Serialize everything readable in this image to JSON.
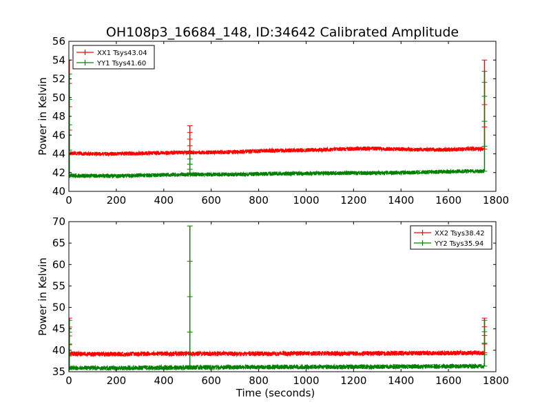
{
  "figure": {
    "title": "OH108p3_16684_148, ID:34642 Calibrated Amplitude"
  },
  "chart_data": [
    {
      "type": "line",
      "title": "OH108p3_16684_148, ID:34642 Calibrated Amplitude",
      "xlabel": "",
      "ylabel": "Power in Kelvin",
      "xlim": [
        0,
        1800
      ],
      "ylim": [
        40,
        56
      ],
      "xticks": [
        0,
        200,
        400,
        600,
        800,
        1000,
        1200,
        1400,
        1600,
        1800
      ],
      "yticks": [
        40,
        42,
        44,
        46,
        48,
        50,
        52,
        54,
        56
      ],
      "grid": false,
      "legend_position": "top-left",
      "series": [
        {
          "name": "XX1 Tsys43.04",
          "color": "#ff0000",
          "x": [
            0,
            100,
            200,
            300,
            400,
            500,
            600,
            700,
            800,
            900,
            1000,
            1100,
            1200,
            1300,
            1400,
            1500,
            1600,
            1700,
            1750
          ],
          "y": [
            44.05,
            44.0,
            44.0,
            44.05,
            44.1,
            44.15,
            44.15,
            44.2,
            44.3,
            44.35,
            44.4,
            44.45,
            44.55,
            44.55,
            44.5,
            44.45,
            44.45,
            44.55,
            44.5
          ],
          "spikes": [
            {
              "x": 2,
              "y": 54.0
            },
            {
              "x": 510,
              "y": 47.0
            },
            {
              "x": 1752,
              "y": 54.0
            }
          ]
        },
        {
          "name": "YY1 Tsys41.60",
          "color": "#008000",
          "x": [
            0,
            100,
            200,
            300,
            400,
            500,
            600,
            700,
            800,
            900,
            1000,
            1100,
            1200,
            1300,
            1400,
            1500,
            1600,
            1700,
            1750
          ],
          "y": [
            41.7,
            41.65,
            41.65,
            41.7,
            41.75,
            41.8,
            41.8,
            41.8,
            41.85,
            41.9,
            41.9,
            41.95,
            41.95,
            41.95,
            42.0,
            42.05,
            42.1,
            42.15,
            42.15
          ],
          "spikes": [
            {
              "x": 2,
              "y": 52.5
            },
            {
              "x": 510,
              "y": 44.0
            },
            {
              "x": 1752,
              "y": 52.8
            }
          ]
        }
      ]
    },
    {
      "type": "line",
      "title": "",
      "xlabel": "Time (seconds)",
      "ylabel": "Power in Kelvin",
      "xlim": [
        0,
        1800
      ],
      "ylim": [
        35,
        70
      ],
      "xticks": [
        0,
        200,
        400,
        600,
        800,
        1000,
        1200,
        1400,
        1600,
        1800
      ],
      "yticks": [
        35,
        40,
        45,
        50,
        55,
        60,
        65,
        70
      ],
      "grid": false,
      "legend_position": "top-right",
      "series": [
        {
          "name": "XX2 Tsys38.42",
          "color": "#ff0000",
          "x": [
            0,
            100,
            200,
            300,
            400,
            500,
            600,
            700,
            800,
            900,
            1000,
            1100,
            1200,
            1300,
            1400,
            1500,
            1600,
            1700,
            1750
          ],
          "y": [
            39.2,
            39.1,
            39.1,
            39.15,
            39.2,
            39.2,
            39.2,
            39.2,
            39.2,
            39.25,
            39.25,
            39.25,
            39.25,
            39.3,
            39.3,
            39.3,
            39.35,
            39.4,
            39.4
          ],
          "spikes": [
            {
              "x": 2,
              "y": 47.5
            },
            {
              "x": 1752,
              "y": 47.5
            }
          ]
        },
        {
          "name": "YY2 Tsys35.94",
          "color": "#008000",
          "x": [
            0,
            100,
            200,
            300,
            400,
            500,
            600,
            700,
            800,
            900,
            1000,
            1100,
            1200,
            1300,
            1400,
            1500,
            1600,
            1700,
            1750
          ],
          "y": [
            35.9,
            35.85,
            35.85,
            35.9,
            35.95,
            36.0,
            36.0,
            36.05,
            36.1,
            36.1,
            36.1,
            36.1,
            36.15,
            36.15,
            36.2,
            36.2,
            36.25,
            36.3,
            36.3
          ],
          "spikes": [
            {
              "x": 2,
              "y": 47.0
            },
            {
              "x": 510,
              "y": 69.0
            },
            {
              "x": 1752,
              "y": 47.0
            }
          ]
        }
      ]
    }
  ]
}
